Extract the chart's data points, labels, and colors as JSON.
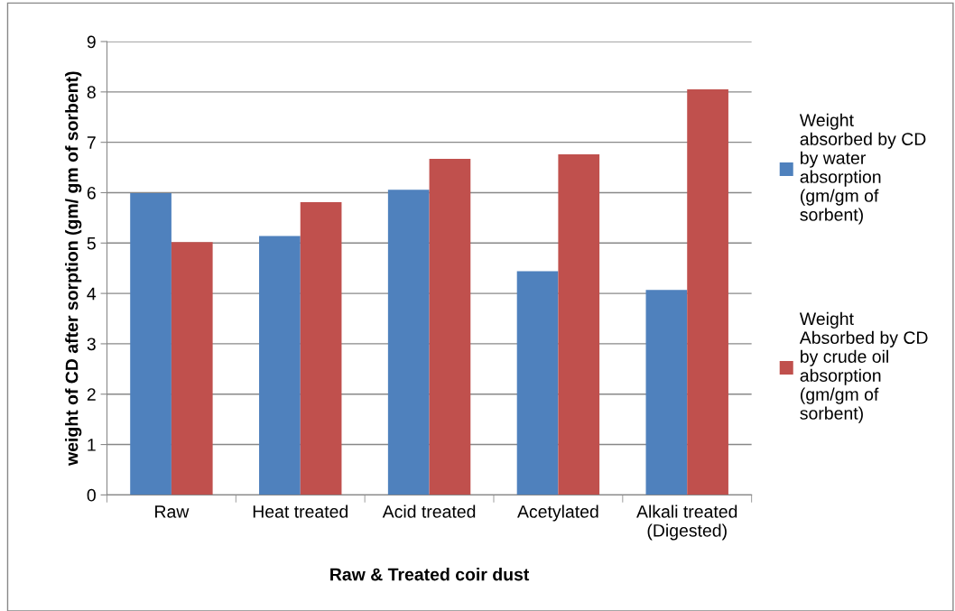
{
  "chart_data": {
    "type": "bar",
    "xlabel": "Raw & Treated coir dust",
    "ylabel": "weight of CD after sorption (gm/ gm of sorbent)",
    "categories": [
      "Raw",
      "Heat treated",
      "Acid treated",
      "Acetylated",
      "Alkali treated (Digested)"
    ],
    "series": [
      {
        "name": "Weight absorbed by CD by water absorption (gm/gm of sorbent)",
        "color": "#4f81bd",
        "values": [
          5.99,
          5.14,
          6.06,
          4.44,
          4.07
        ]
      },
      {
        "name": "Weight Absorbed by CD by crude oil absorption (gm/gm of sorbent)",
        "color": "#c0504d",
        "values": [
          5.02,
          5.81,
          6.67,
          6.76,
          8.05
        ]
      }
    ],
    "ylim": [
      0,
      9
    ],
    "yticks": [
      0,
      1,
      2,
      3,
      4,
      5,
      6,
      7,
      8,
      9
    ],
    "grid": "y",
    "legend": "right"
  }
}
